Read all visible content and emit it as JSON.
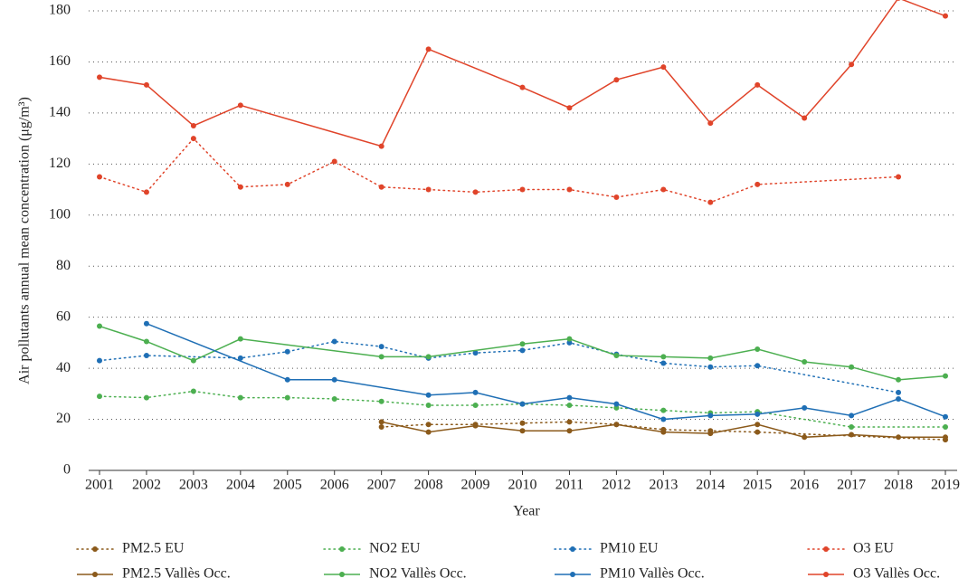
{
  "chart_data": {
    "type": "line",
    "x_label": "Year",
    "y_label": "Air pollutants annual mean concentration (μg/m³)",
    "categories": [
      "2001",
      "2002",
      "2003",
      "2004",
      "2005",
      "2006",
      "2007",
      "2008",
      "2009",
      "2010",
      "2011",
      "2012",
      "2013",
      "2014",
      "2015",
      "2016",
      "2017",
      "2018",
      "2019"
    ],
    "ylim": [
      0,
      180
    ],
    "yticks": [
      0,
      20,
      40,
      60,
      80,
      100,
      120,
      140,
      160,
      180
    ],
    "grid": true,
    "connect_gaps": true,
    "legend": "bottom",
    "series": [
      {
        "name": "PM2.5 EU",
        "color": "#8b5a1b",
        "style": "dotted",
        "values": [
          null,
          null,
          null,
          null,
          null,
          null,
          17,
          18,
          18,
          18.5,
          19,
          18,
          16,
          15.5,
          15,
          null,
          null,
          null,
          12
        ]
      },
      {
        "name": "NO2 EU",
        "color": "#4caf50",
        "style": "dotted",
        "values": [
          29,
          28.5,
          31,
          28.5,
          28.5,
          28,
          27,
          25.5,
          25.5,
          26,
          25.5,
          24.5,
          23.5,
          22.5,
          23,
          null,
          17,
          null,
          17
        ]
      },
      {
        "name": "PM10 EU",
        "color": "#1f6fb5",
        "style": "dotted",
        "values": [
          43,
          45,
          null,
          44,
          46.5,
          50.5,
          48.5,
          44,
          46,
          47,
          50,
          45.5,
          42,
          40.5,
          41,
          null,
          null,
          30.5,
          null
        ]
      },
      {
        "name": "O3 EU",
        "color": "#e0442a",
        "style": "dotted",
        "values": [
          115,
          109,
          130,
          111,
          112,
          121,
          111,
          110,
          109,
          110,
          110,
          107,
          110,
          105,
          112,
          null,
          null,
          115,
          null
        ]
      },
      {
        "name": "PM2.5 Vallès Occ.",
        "color": "#8b5a1b",
        "style": "solid",
        "values": [
          null,
          null,
          null,
          null,
          null,
          null,
          19,
          15,
          17.5,
          15.5,
          15.5,
          18,
          15,
          14.5,
          18,
          13,
          14,
          13,
          13
        ]
      },
      {
        "name": "NO2 Vallès Occ.",
        "color": "#4caf50",
        "style": "solid",
        "values": [
          56.5,
          50.5,
          43,
          51.5,
          null,
          null,
          44.5,
          44.5,
          null,
          49.5,
          51.5,
          45,
          44.5,
          44,
          47.5,
          42.5,
          40.5,
          35.5,
          37
        ]
      },
      {
        "name": "PM10 Vallès Occ.",
        "color": "#1f6fb5",
        "style": "solid",
        "values": [
          null,
          57.5,
          null,
          null,
          35.5,
          35.5,
          null,
          29.5,
          30.5,
          26,
          28.5,
          26,
          20,
          21.5,
          22,
          24.5,
          21.5,
          28,
          21
        ]
      },
      {
        "name": "O3 Vallès Occ.",
        "color": "#e0442a",
        "style": "solid",
        "values": [
          154,
          151,
          135,
          143,
          null,
          null,
          127,
          165,
          null,
          150,
          142,
          153,
          158,
          136,
          151,
          138,
          159,
          185,
          178
        ]
      }
    ]
  }
}
